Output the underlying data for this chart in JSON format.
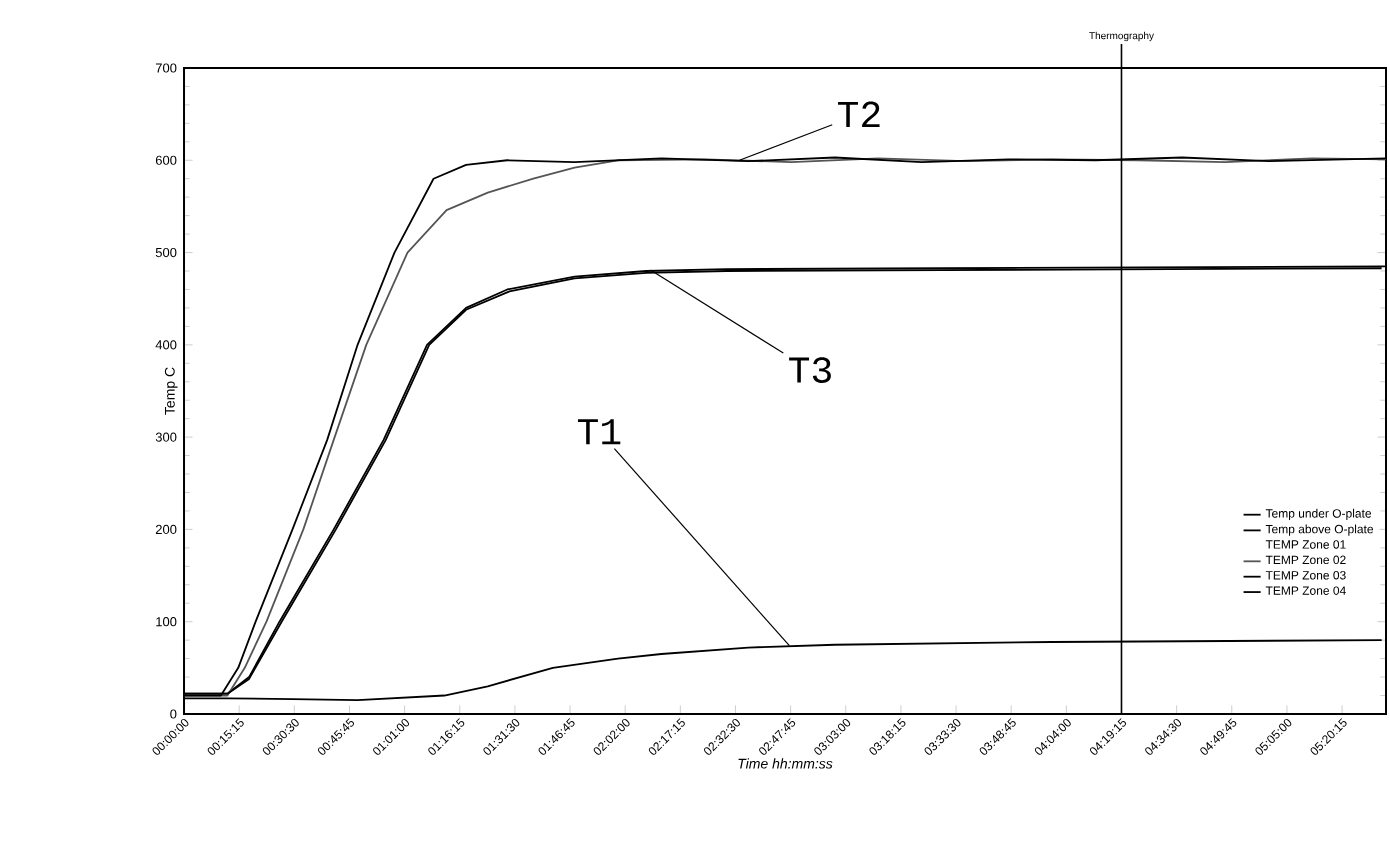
{
  "chart_data": {
    "type": "line",
    "xlabel": "Time hh:mm:ss",
    "ylabel": "Temp C",
    "xlim": [
      0,
      5.54
    ],
    "ylim": [
      0,
      700
    ],
    "xticks": [
      {
        "value": 0,
        "label": "00:00:00"
      },
      {
        "value": 0.25417,
        "label": "00:15:15"
      },
      {
        "value": 0.50833,
        "label": "00:30:30"
      },
      {
        "value": 0.7625,
        "label": "00:45:45"
      },
      {
        "value": 1.01667,
        "label": "01:01:00"
      },
      {
        "value": 1.27083,
        "label": "01:16:15"
      },
      {
        "value": 1.525,
        "label": "01:31:30"
      },
      {
        "value": 1.77917,
        "label": "01:46:45"
      },
      {
        "value": 2.03333,
        "label": "02:02:00"
      },
      {
        "value": 2.2875,
        "label": "02:17:15"
      },
      {
        "value": 2.54167,
        "label": "02:32:30"
      },
      {
        "value": 2.79583,
        "label": "02:47:45"
      },
      {
        "value": 3.05,
        "label": "03:03:00"
      },
      {
        "value": 3.30417,
        "label": "03:18:15"
      },
      {
        "value": 3.55833,
        "label": "03:33:30"
      },
      {
        "value": 3.8125,
        "label": "03:48:45"
      },
      {
        "value": 4.06667,
        "label": "04:04:00"
      },
      {
        "value": 4.32083,
        "label": "04:19:15"
      },
      {
        "value": 4.575,
        "label": "04:34:30"
      },
      {
        "value": 4.82917,
        "label": "04:49:45"
      },
      {
        "value": 5.08333,
        "label": "05:05:00"
      },
      {
        "value": 5.3375,
        "label": "05:20:15"
      }
    ],
    "yticks": [
      0,
      100,
      200,
      300,
      400,
      500,
      600,
      700
    ],
    "grid": false,
    "legend": "right",
    "marker": "none",
    "line_style": "solid",
    "series": [
      {
        "name": "Temp under O-plate",
        "color": "#000000",
        "x": [
          0,
          0.2,
          0.5,
          0.8,
          1.2,
          1.4,
          1.7,
          2.0,
          2.2,
          2.6,
          3.0,
          4.0,
          5.52
        ],
        "values": [
          17,
          17,
          16,
          15,
          20,
          30,
          50,
          60,
          65,
          72,
          75,
          78,
          80
        ]
      },
      {
        "name": "Temp above O-plate",
        "color": "#000000",
        "x": [
          0,
          0.2,
          0.3,
          0.44,
          0.69,
          0.92,
          1.12,
          1.3,
          1.49,
          1.8,
          2.13,
          2.5,
          3.5,
          5.54
        ],
        "values": [
          22,
          22,
          40,
          100,
          200,
          297,
          400,
          440,
          460,
          474,
          480,
          482,
          483,
          485
        ]
      },
      {
        "name": "TEMP Zone 01"
      },
      {
        "name": "TEMP Zone 02",
        "color": "#555555",
        "x": [
          0,
          0.2,
          0.28,
          0.38,
          0.55,
          0.69,
          0.84,
          1.03,
          1.21,
          1.4,
          1.61,
          1.8,
          2.0,
          2.4,
          2.8,
          3.2,
          3.6,
          4.0,
          4.4,
          4.8,
          5.2,
          5.54
        ],
        "values": [
          20,
          20,
          50,
          100,
          200,
          297,
          400,
          500,
          546,
          565,
          580,
          592,
          600,
          601,
          598,
          602,
          599,
          601,
          600,
          598,
          602,
          601
        ]
      },
      {
        "name": "TEMP Zone 03",
        "color": "#000000",
        "x": [
          0,
          0.17,
          0.25,
          0.33,
          0.5,
          0.66,
          0.8,
          0.97,
          1.15,
          1.3,
          1.49,
          1.8,
          2.2,
          2.6,
          3.0,
          3.4,
          3.8,
          4.2,
          4.6,
          5.0,
          5.54
        ],
        "values": [
          20,
          20,
          50,
          100,
          200,
          297,
          400,
          500,
          580,
          595,
          600,
          598,
          602,
          599,
          603,
          598,
          601,
          600,
          603,
          599,
          602
        ]
      },
      {
        "name": "TEMP Zone 04",
        "color": "#000000",
        "x": [
          0,
          0.2,
          0.3,
          0.45,
          0.7,
          0.93,
          1.13,
          1.3,
          1.5,
          1.8,
          2.13,
          2.5,
          3.5,
          5.52
        ],
        "values": [
          22,
          22,
          38,
          100,
          200,
          297,
          400,
          438,
          458,
          472,
          478,
          480,
          481,
          483
        ]
      }
    ],
    "ref_lines": [
      {
        "axis": "x",
        "value": 4.32083,
        "label": "Thermography"
      }
    ],
    "annotations": [
      {
        "text": "T2",
        "x": 2.56,
        "y": 600
      },
      {
        "text": "T3",
        "x": 2.15,
        "y": 481
      },
      {
        "text": "T1",
        "x": 2.79,
        "y": 74
      }
    ]
  }
}
